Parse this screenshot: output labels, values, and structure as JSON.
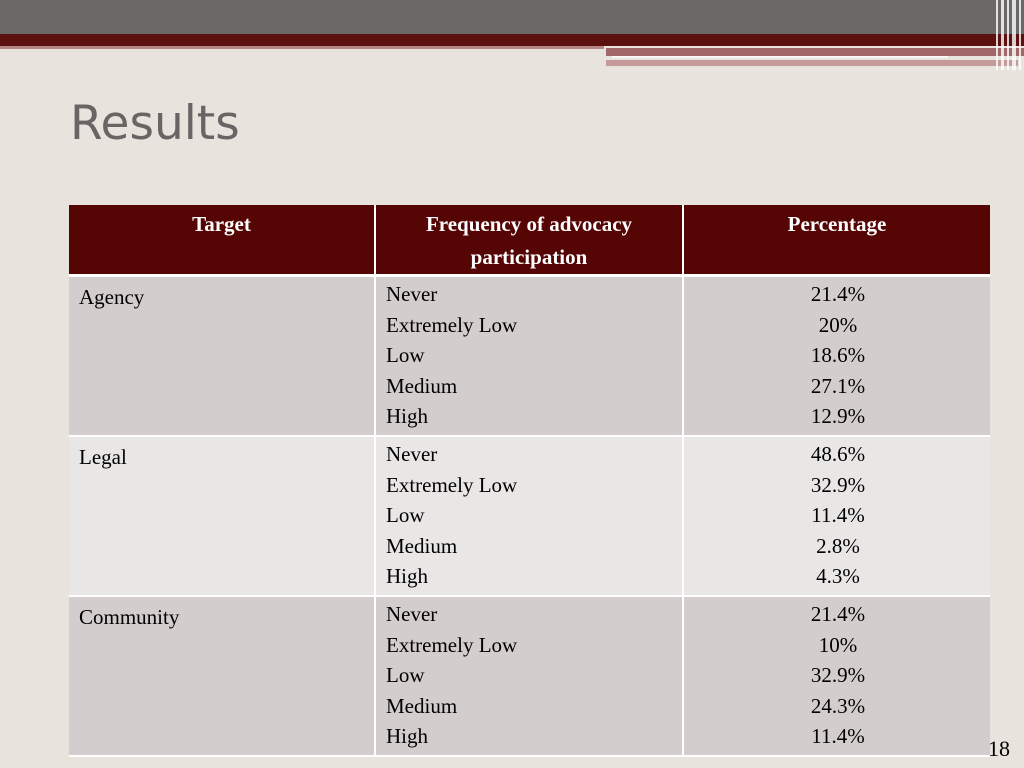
{
  "slide": {
    "title": "Results",
    "page_number": "18",
    "colors": {
      "header_bg": "#560505",
      "band": "#5c1010",
      "topbar": "#6b6868",
      "background": "#e8e3dd"
    }
  },
  "table": {
    "headers": [
      "Target",
      "Frequency of advocacy participation",
      "Percentage"
    ],
    "rows": [
      {
        "target": "Agency",
        "levels": [
          "Never",
          "Extremely Low",
          "Low",
          "Medium",
          "High"
        ],
        "percentages": [
          "21.4%",
          "20%",
          "18.6%",
          "27.1%",
          "12.9%"
        ]
      },
      {
        "target": "Legal",
        "levels": [
          "Never",
          "Extremely Low",
          "Low",
          "Medium",
          "High"
        ],
        "percentages": [
          "48.6%",
          "32.9%",
          "11.4%",
          "2.8%",
          "4.3%"
        ]
      },
      {
        "target": "Community",
        "levels": [
          "Never",
          "Extremely Low",
          "Low",
          "Medium",
          "High"
        ],
        "percentages": [
          "21.4%",
          "10%",
          "32.9%",
          "24.3%",
          "11.4%"
        ]
      }
    ]
  }
}
